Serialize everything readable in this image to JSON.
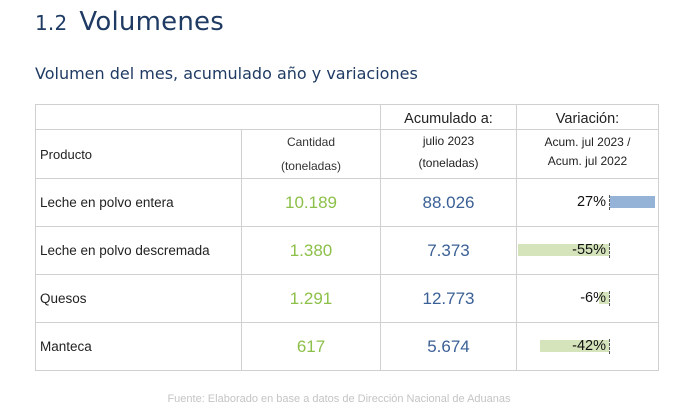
{
  "section": {
    "number": "1.2",
    "title": "Volumenes"
  },
  "subtitle": "Volumen del mes, acumulado año y variaciones",
  "table": {
    "headers": {
      "producto": "Producto",
      "cantidad_line1": "Cantidad",
      "cantidad_line2": "(toneladas)",
      "acumulado_title": "Acumulado a:",
      "acumulado_line1": "julio 2023",
      "acumulado_line2": "(toneladas)",
      "variacion_title": "Variación:",
      "variacion_line1": "Acum. jul 2023 /",
      "variacion_line2": "Acum. jul 2022"
    },
    "rows": [
      {
        "producto": "Leche en polvo entera",
        "cantidad": "10.189",
        "acumulado": "88.026",
        "variacion": "27%",
        "variacion_value": 27
      },
      {
        "producto": "Leche en polvo descremada",
        "cantidad": "1.380",
        "acumulado": "7.373",
        "variacion": "-55%",
        "variacion_value": -55
      },
      {
        "producto": "Quesos",
        "cantidad": "1.291",
        "acumulado": "12.773",
        "variacion": "-6%",
        "variacion_value": -6
      },
      {
        "producto": "Manteca",
        "cantidad": "617",
        "acumulado": "5.674",
        "variacion": "-42%",
        "variacion_value": -42
      }
    ]
  },
  "colors": {
    "cantidad": "#8dc04a",
    "acumulado": "#3b6096",
    "positive_bar": "#95b3d7",
    "negative_bar": "#d6e4bc",
    "title": "#1f3b63"
  },
  "footer": "Fuente: Elaborado en base a datos de Dirección Nacional de Aduanas"
}
